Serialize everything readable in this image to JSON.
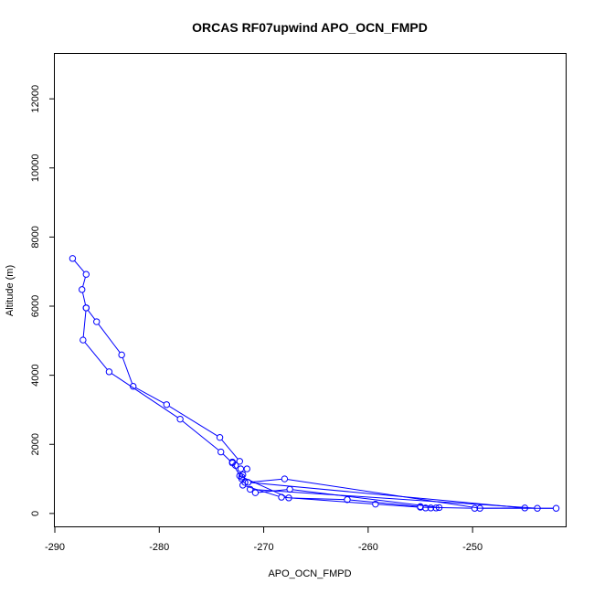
{
  "chart_data": {
    "type": "line",
    "title": "ORCAS RF07upwind APO_OCN_FMPD",
    "xlabel": "APO_OCN_FMPD",
    "ylabel": "Altitude (m)",
    "xlim": [
      -290,
      -241
    ],
    "ylim": [
      -400,
      13300
    ],
    "x_ticks": [
      -290,
      -280,
      -270,
      -260,
      -250
    ],
    "y_ticks": [
      0,
      2000,
      4000,
      6000,
      8000,
      10000,
      12000
    ],
    "x_tick_labels": [
      "-290",
      "-280",
      "-270",
      "-260",
      "-250"
    ],
    "y_tick_labels": [
      "0",
      "2000",
      "4000",
      "6000",
      "8000",
      "10000",
      "12000"
    ],
    "grid": false,
    "series_color": "#0000ff",
    "series": [
      {
        "points": [
          [
            -288.3,
            7380
          ],
          [
            -287.0,
            6920
          ],
          [
            -287.4,
            6480
          ],
          [
            -287.0,
            5950
          ],
          [
            -286.0,
            5550
          ],
          [
            -283.6,
            4590
          ],
          [
            -282.5,
            3680
          ],
          [
            -279.3,
            3150
          ],
          [
            -274.2,
            2200
          ],
          [
            -272.3,
            1510
          ],
          [
            -273.0,
            1490
          ],
          [
            -272.7,
            1390
          ],
          [
            -272.2,
            1290
          ],
          [
            -271.6,
            1290
          ],
          [
            -272.0,
            1120
          ],
          [
            -272.3,
            1090
          ],
          [
            -272.1,
            1060
          ],
          [
            -267.6,
            450
          ],
          [
            -262.0,
            400
          ],
          [
            -255.0,
            200
          ],
          [
            -254.5,
            160
          ],
          [
            -254.0,
            160
          ],
          [
            -253.5,
            160
          ],
          [
            -253.2,
            170
          ],
          [
            -267.5,
            700
          ],
          [
            -270.8,
            600
          ],
          [
            -271.3,
            700
          ],
          [
            -243.8,
            150
          ],
          [
            -242.0,
            150
          ],
          [
            -249.3,
            150
          ],
          [
            -268.0,
            1000
          ],
          [
            -271.5,
            900
          ],
          [
            -245.0,
            160
          ],
          [
            -249.8,
            150
          ],
          [
            -255.0,
            180
          ],
          [
            -259.3,
            270
          ],
          [
            -268.3,
            470
          ],
          [
            -272.0,
            820
          ],
          [
            -271.8,
            900
          ],
          [
            -272.1,
            1000
          ],
          [
            -273.0,
            1460
          ],
          [
            -274.1,
            1780
          ],
          [
            -278.0,
            2730
          ],
          [
            -284.8,
            4100
          ],
          [
            -287.3,
            5020
          ],
          [
            -287.0,
            5950
          ]
        ]
      }
    ]
  }
}
